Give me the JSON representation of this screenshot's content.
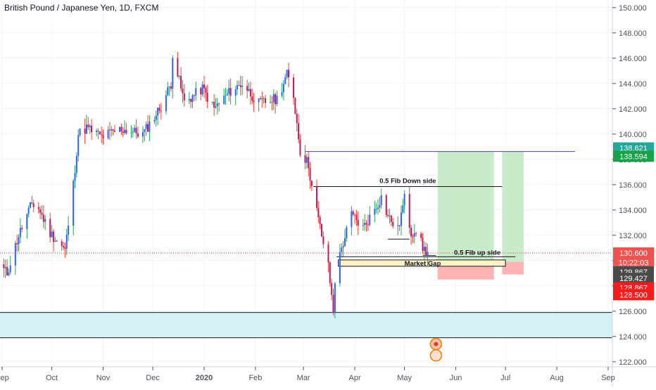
{
  "chart_data": {
    "type": "candlestick",
    "title": "British Pound / Japanese Yen, 1D, FXCM",
    "ylim": [
      121.6,
      150.6
    ],
    "y_ticks": [
      "122.000",
      "124.000",
      "126.000",
      "128.000",
      "130.000",
      "132.000",
      "134.000",
      "136.000",
      "138.000",
      "140.000",
      "142.000",
      "144.000",
      "146.000",
      "148.000",
      "150.000"
    ],
    "x_ticks": [
      "Sep",
      "Oct",
      "Nov",
      "Dec",
      "2020",
      "Feb",
      "Mar",
      "Apr",
      "May",
      "Jun",
      "Jul",
      "Aug",
      "Sep"
    ],
    "anchor_points": [
      {
        "date": "2019-09-01",
        "close": 129.4
      },
      {
        "date": "2019-09-04",
        "close": 129.0
      },
      {
        "date": "2019-09-11",
        "close": 132.0
      },
      {
        "date": "2019-09-19",
        "close": 134.5
      },
      {
        "date": "2019-09-23",
        "close": 134.1
      },
      {
        "date": "2019-09-30",
        "close": 132.2
      },
      {
        "date": "2019-10-09",
        "close": 130.8
      },
      {
        "date": "2019-10-14",
        "close": 136.0
      },
      {
        "date": "2019-10-17",
        "close": 140.0
      },
      {
        "date": "2019-10-22",
        "close": 140.5
      },
      {
        "date": "2019-10-31",
        "close": 139.8
      },
      {
        "date": "2019-11-12",
        "close": 140.4
      },
      {
        "date": "2019-11-25",
        "close": 140.0
      },
      {
        "date": "2019-12-06",
        "close": 142.2
      },
      {
        "date": "2019-12-12",
        "close": 144.0
      },
      {
        "date": "2019-12-13",
        "close": 146.4
      },
      {
        "date": "2019-12-20",
        "close": 142.5
      },
      {
        "date": "2019-12-31",
        "close": 143.6
      },
      {
        "date": "2020-01-07",
        "close": 142.0
      },
      {
        "date": "2020-01-17",
        "close": 143.4
      },
      {
        "date": "2020-01-24",
        "close": 144.0
      },
      {
        "date": "2020-02-03",
        "close": 142.4
      },
      {
        "date": "2020-02-14",
        "close": 142.8
      },
      {
        "date": "2020-02-20",
        "close": 144.7
      },
      {
        "date": "2020-02-24",
        "close": 143.0
      },
      {
        "date": "2020-02-28",
        "close": 138.7
      },
      {
        "date": "2020-03-04",
        "close": 137.6
      },
      {
        "date": "2020-03-06",
        "close": 135.8
      },
      {
        "date": "2020-03-12",
        "close": 132.0
      },
      {
        "date": "2020-03-16",
        "close": 129.5
      },
      {
        "date": "2020-03-19",
        "close": 126.0
      },
      {
        "date": "2020-03-20",
        "close": 128.5
      },
      {
        "date": "2020-03-24",
        "close": 131.0
      },
      {
        "date": "2020-03-30",
        "close": 133.6
      },
      {
        "date": "2020-04-06",
        "close": 132.6
      },
      {
        "date": "2020-04-10",
        "close": 133.4
      },
      {
        "date": "2020-04-17",
        "close": 135.0
      },
      {
        "date": "2020-04-21",
        "close": 133.5
      },
      {
        "date": "2020-04-27",
        "close": 132.4
      },
      {
        "date": "2020-05-01",
        "close": 134.9
      },
      {
        "date": "2020-05-05",
        "close": 132.2
      },
      {
        "date": "2020-05-08",
        "close": 132.5
      },
      {
        "date": "2020-05-12",
        "close": 131.0
      },
      {
        "date": "2020-05-15",
        "close": 130.6
      }
    ],
    "horizontal_levels": [
      {
        "value": 138.621,
        "color": "#3f3fbf"
      },
      {
        "value": 135.85,
        "color": "#131722"
      },
      {
        "value": 130.6,
        "color": "#e53935",
        "style": "dotted"
      },
      {
        "value": 125.9,
        "color": "#131722"
      },
      {
        "value": 123.9,
        "color": "#131722"
      }
    ],
    "price_tags": [
      {
        "label": "138.621",
        "color": "#26a69a"
      },
      {
        "label": "138.594",
        "color": "#16a34a"
      },
      {
        "label": "130.600",
        "color": "#ef5350"
      },
      {
        "label": "10:22:03",
        "color": "#ef5350"
      },
      {
        "label": "129.867",
        "color": "#4a4a4a"
      },
      {
        "label": "129.427",
        "color": "#4a4a4a"
      },
      {
        "label": "128.867",
        "color": "#f41c1c"
      },
      {
        "label": "128.500",
        "color": "#f41c1c"
      }
    ],
    "annotations": [
      {
        "text": "0.5 Fib Down side"
      },
      {
        "text": "0.5 Fib up side"
      },
      {
        "text": "Market Gap"
      }
    ],
    "colors": {
      "up": "#2962ff",
      "down": "#c2185b",
      "wick_up": "#26a65b",
      "wick_down": "#f44336",
      "zone": "#d5f1f5",
      "profit": "#c8ebc9",
      "loss": "#ffb3b3",
      "gap": "#fff3c4"
    }
  }
}
